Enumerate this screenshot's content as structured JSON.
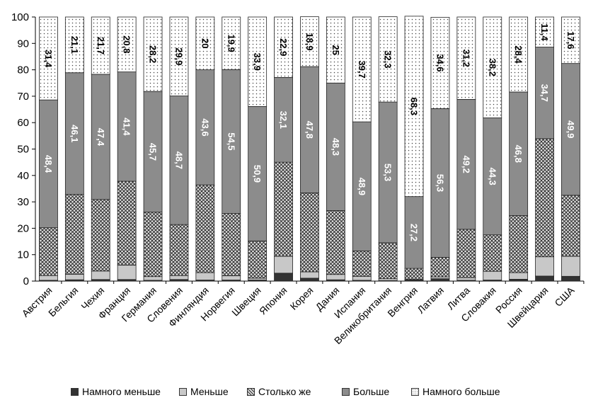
{
  "chart_data": {
    "type": "bar",
    "stacked": true,
    "categories": [
      "Австрия",
      "Бельгия",
      "Чехия",
      "Франция",
      "Германия",
      "Словения",
      "Финляндия",
      "Норвегия",
      "Швеция",
      "Япония",
      "Корея",
      "Дания",
      "Испания",
      "Великобритания",
      "Венгрия",
      "Латвия",
      "Литва",
      "Словакия",
      "Россия",
      "Швейцария",
      "США"
    ],
    "ylim": [
      0,
      100
    ],
    "yticks": [
      "0",
      "10",
      "20",
      "30",
      "40",
      "50",
      "60",
      "70",
      "80",
      "90",
      "100"
    ],
    "grid": false,
    "legend_position": "bottom",
    "series": [
      {
        "name": "Намного меньше",
        "color": "#333333",
        "pattern": "solid",
        "values": [
          0.3,
          0.5,
          0.6,
          0.6,
          0.3,
          0.6,
          0.4,
          0.4,
          0.4,
          3.0,
          1.1,
          0.5,
          0.3,
          0.2,
          0.5,
          0.9,
          0.3,
          0.4,
          0.7,
          1.9,
          1.8
        ]
      },
      {
        "name": "Меньше",
        "color": "#c8c8c8",
        "pattern": "solid",
        "values": [
          1.8,
          2.1,
          3.2,
          5.4,
          1.4,
          1.5,
          2.8,
          1.6,
          0.7,
          6.4,
          2.4,
          2.0,
          1.5,
          0.7,
          0.1,
          0.7,
          1.0,
          3.3,
          2.5,
          7.3,
          7.6
        ]
      },
      {
        "name": "Столько же",
        "color": "#9a9a9a",
        "pattern": "crosshatch",
        "values": [
          18.1,
          30.2,
          27.1,
          31.8,
          24.4,
          19.3,
          33.2,
          23.6,
          14.1,
          35.6,
          29.9,
          24.2,
          9.6,
          13.6,
          4.2,
          7.4,
          18.3,
          13.8,
          21.6,
          44.7,
          23.1
        ]
      },
      {
        "name": "Больше",
        "color": "#8c8c8c",
        "pattern": "solid",
        "values": [
          48.4,
          46.1,
          47.4,
          41.4,
          45.7,
          48.7,
          43.6,
          54.5,
          50.9,
          32.1,
          47.8,
          48.3,
          48.9,
          53.3,
          27.2,
          56.3,
          49.2,
          44.3,
          46.8,
          34.7,
          49.9
        ]
      },
      {
        "name": "Намного больше",
        "color": "#ffffff",
        "pattern": "dots",
        "values": [
          31.4,
          21.1,
          21.7,
          20.8,
          28.2,
          29.9,
          20,
          19.9,
          33.9,
          22.9,
          18.9,
          25,
          39.7,
          32.3,
          68.3,
          34.6,
          31.2,
          38.2,
          28.4,
          11.4,
          17.6
        ]
      }
    ],
    "data_labels": {
      "Больше": [
        "48,4",
        "46,1",
        "47,4",
        "41,4",
        "45,7",
        "48,7",
        "43,6",
        "54,5",
        "50,9",
        "32,1",
        "47,8",
        "48,3",
        "48,9",
        "53,3",
        "27,2",
        "56,3",
        "49,2",
        "44,3",
        "46,8",
        "34,7",
        "49,9"
      ],
      "Намного больше": [
        "31,4",
        "21,1",
        "21,7",
        "20,8",
        "28,2",
        "29,9",
        "20",
        "19,9",
        "33,9",
        "22,9",
        "18,9",
        "25",
        "39,7",
        "32,3",
        "68,3",
        "34,6",
        "31,2",
        "38,2",
        "28,4",
        "11,4",
        "17,6"
      ]
    }
  }
}
